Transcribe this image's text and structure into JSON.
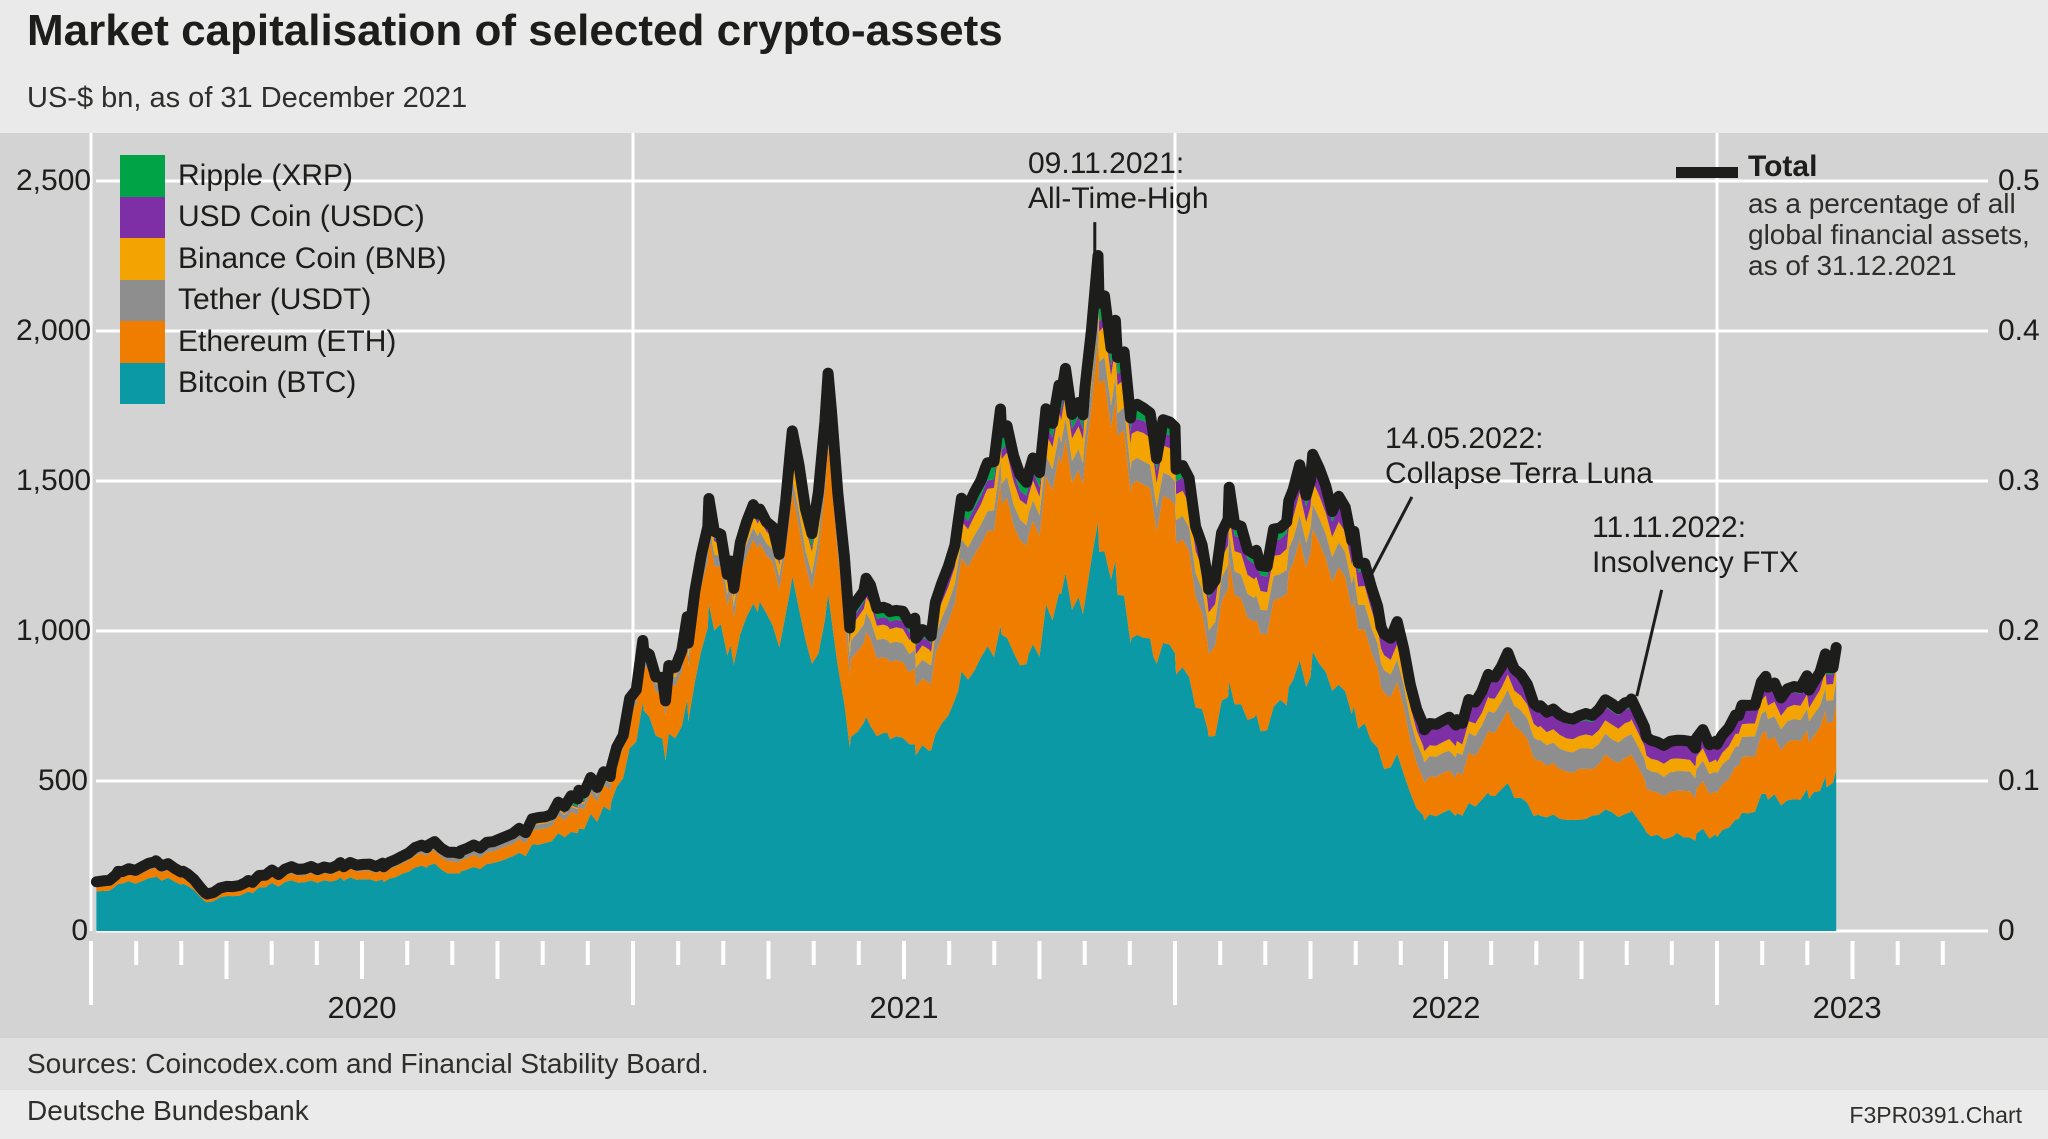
{
  "header": {
    "title": "Market capitalisation of selected crypto-assets",
    "subtitle": "US-$ bn, as of 31 December 2021"
  },
  "legend": {
    "items": [
      {
        "label": "Ripple (XRP)",
        "color": "#00a345"
      },
      {
        "label": "USD Coin (USDC)",
        "color": "#7e2fa5"
      },
      {
        "label": "Binance Coin (BNB)",
        "color": "#f3a400"
      },
      {
        "label": "Tether (USDT)",
        "color": "#8e8e8e"
      },
      {
        "label": "Ethereum (ETH)",
        "color": "#ee7d00"
      },
      {
        "label": "Bitcoin (BTC)",
        "color": "#0a99a5"
      }
    ]
  },
  "total_legend": {
    "label": "Total",
    "color": "#1d1d1b",
    "note_line1": "as a percentage of all",
    "note_line2": "global financial assets,",
    "note_line3": "as of 31.12.2021"
  },
  "axes": {
    "left": {
      "ticks": [
        {
          "value": 0,
          "label": "0"
        },
        {
          "value": 500,
          "label": "500"
        },
        {
          "value": 1000,
          "label": "1,000"
        },
        {
          "value": 1500,
          "label": "1,500"
        },
        {
          "value": 2000,
          "label": "2,000"
        },
        {
          "value": 2500,
          "label": "2,500"
        }
      ]
    },
    "right": {
      "ticks": [
        {
          "value": 0,
          "label": "0"
        },
        {
          "value": 0.1,
          "label": "0.1"
        },
        {
          "value": 0.2,
          "label": "0.2"
        },
        {
          "value": 0.3,
          "label": "0.3"
        },
        {
          "value": 0.4,
          "label": "0.4"
        },
        {
          "value": 0.5,
          "label": "0.5"
        }
      ]
    },
    "x": {
      "month_tick_start": 2020.0,
      "month_tick_end": 2023.45,
      "year_ticks": [
        2020,
        2021,
        2022,
        2023
      ],
      "year_labels": [
        {
          "label": "2020",
          "t_center": 2020.5
        },
        {
          "label": "2021",
          "t_center": 2021.5
        },
        {
          "label": "2022",
          "t_center": 2022.5
        },
        {
          "label": "2023",
          "t_center": 2023.24
        }
      ]
    }
  },
  "footer": {
    "sources": "Sources: Coincodex.com and Financial Stability Board.",
    "publisher": "Deutsche Bundesbank",
    "chart_id": "F3PR0391.Chart"
  },
  "chart_data": {
    "type": "area",
    "subtype": "stacked-area-with-total-line",
    "title": "Market capitalisation of selected crypto-assets",
    "xlabel": "",
    "ylabel_left": "US-$ bn",
    "ylabel_right": "Total as a percentage of all global financial assets",
    "ylim_left": [
      0,
      2500
    ],
    "ylim_right": [
      0,
      0.5
    ],
    "xlim": [
      2020.01,
      2023.5
    ],
    "grid": true,
    "legend_position": "top-left",
    "x": [
      2020.01,
      2020.05,
      2020.12,
      2020.17,
      2020.21,
      2020.29,
      2020.37,
      2020.46,
      2020.54,
      2020.62,
      2020.68,
      2020.77,
      2020.85,
      2020.9,
      2020.96,
      2021.02,
      2021.06,
      2021.1,
      2021.14,
      2021.18,
      2021.23,
      2021.27,
      2021.29,
      2021.33,
      2021.36,
      2021.4,
      2021.43,
      2021.47,
      2021.52,
      2021.55,
      2021.6,
      2021.65,
      2021.68,
      2021.73,
      2021.79,
      2021.83,
      2021.86,
      2021.89,
      2021.92,
      2021.96,
      2022.0,
      2022.06,
      2022.1,
      2022.15,
      2022.21,
      2022.25,
      2022.33,
      2022.36,
      2022.38,
      2022.41,
      2022.46,
      2022.52,
      2022.58,
      2022.62,
      2022.67,
      2022.71,
      2022.77,
      2022.84,
      2022.87,
      2022.92,
      2022.96,
      2023.0,
      2023.04,
      2023.09,
      2023.13,
      2023.17,
      2023.2,
      2023.22
    ],
    "series": [
      {
        "name": "Bitcoin (BTC)",
        "color": "#0a99a5",
        "values": [
          132,
          155,
          182,
          160,
          100,
          128,
          168,
          172,
          170,
          215,
          192,
          242,
          298,
          338,
          428,
          738,
          598,
          718,
          1078,
          898,
          1118,
          968,
          1185,
          905,
          1078,
          622,
          700,
          640,
          630,
          620,
          820,
          928,
          980,
          880,
          1158,
          1050,
          1318,
          1150,
          950,
          920,
          910,
          662,
          790,
          670,
          780,
          905,
          730,
          650,
          552,
          570,
          372,
          395,
          450,
          468,
          390,
          374,
          382,
          400,
          320,
          312,
          320,
          316,
          390,
          440,
          420,
          452,
          500,
          537
        ]
      },
      {
        "name": "Ethereum (ETH)",
        "color": "#ee7d00",
        "values": [
          15,
          20,
          30,
          24,
          14,
          19,
          23,
          26,
          30,
          43,
          38,
          42,
          52,
          66,
          70,
          155,
          152,
          195,
          225,
          165,
          215,
          185,
          265,
          258,
          488,
          245,
          290,
          250,
          240,
          235,
          358,
          385,
          462,
          380,
          448,
          430,
          575,
          530,
          500,
          480,
          460,
          290,
          375,
          315,
          370,
          415,
          348,
          300,
          240,
          242,
          125,
          135,
          200,
          235,
          190,
          166,
          163,
          190,
          150,
          145,
          150,
          146,
          185,
          196,
          186,
          196,
          210,
          225
        ]
      },
      {
        "name": "Tether (USDT)",
        "color": "#8e8e8e",
        "values": [
          5,
          5,
          5,
          5,
          5,
          6,
          9,
          9,
          9,
          10,
          14,
          16,
          17,
          18,
          20,
          24,
          26,
          30,
          35,
          38,
          40,
          42,
          46,
          50,
          58,
          60,
          62,
          62,
          62,
          62,
          63,
          65,
          68,
          68,
          70,
          71,
          73,
          74,
          76,
          77,
          78,
          78,
          79,
          79,
          80,
          82,
          83,
          82,
          77,
          74,
          68,
          66,
          66,
          68,
          68,
          68,
          68,
          69,
          66,
          65,
          66,
          66,
          66,
          68,
          69,
          71,
          74,
          70
        ]
      },
      {
        "name": "Binance Coin (BNB)",
        "color": "#f3a400",
        "values": [
          2,
          3,
          4,
          3,
          2,
          2,
          3,
          3,
          3,
          3,
          4,
          4,
          4,
          5,
          5,
          6,
          7,
          20,
          48,
          35,
          42,
          40,
          83,
          75,
          95,
          45,
          55,
          48,
          48,
          48,
          57,
          70,
          82,
          62,
          77,
          75,
          105,
          98,
          90,
          87,
          88,
          60,
          69,
          61,
          67,
          74,
          65,
          58,
          48,
          50,
          37,
          37,
          44,
          49,
          45,
          44,
          44,
          47,
          42,
          42,
          40,
          39,
          44,
          47,
          45,
          48,
          55,
          58
        ]
      },
      {
        "name": "USD Coin (USDC)",
        "color": "#7e2fa5",
        "values": [
          1,
          1,
          1,
          1,
          1,
          1,
          1,
          1,
          1,
          1,
          2,
          3,
          3,
          3,
          4,
          5,
          6,
          7,
          9,
          9,
          10,
          11,
          11,
          12,
          15,
          20,
          22,
          25,
          26,
          27,
          27,
          28,
          29,
          31,
          32,
          33,
          34,
          36,
          40,
          41,
          43,
          48,
          51,
          52,
          52,
          51,
          49,
          50,
          51,
          53,
          56,
          55,
          54,
          52,
          51,
          50,
          46,
          44,
          44,
          43,
          44,
          44,
          43,
          42,
          42,
          40,
          34,
          30
        ]
      },
      {
        "name": "Ripple (XRP)",
        "color": "#00a345",
        "values": [
          9,
          10,
          12,
          10,
          7,
          8,
          9,
          8,
          9,
          13,
          11,
          11,
          16,
          30,
          13,
          15,
          12,
          18,
          26,
          19,
          24,
          23,
          65,
          50,
          70,
          35,
          40,
          32,
          30,
          28,
          48,
          55,
          64,
          45,
          53,
          46,
          62,
          54,
          46,
          42,
          41,
          29,
          38,
          33,
          37,
          41,
          31,
          26,
          20,
          20,
          16,
          16,
          19,
          19,
          17,
          17,
          23,
          23,
          18,
          17,
          17,
          16,
          19,
          20,
          19,
          21,
          23,
          25
        ]
      }
    ],
    "total_line": {
      "name": "Total",
      "color": "#1d1d1b",
      "definition": "sum of all stacked series; right axis reads it as % of global financial assets"
    },
    "annotations": [
      {
        "date_label": "09.11.2021:",
        "event_label": "All-Time-High",
        "pointer": {
          "from": {
            "t": 2021.852,
            "v": 2363
          },
          "to": {
            "t": 2021.852,
            "v": 2137
          }
        }
      },
      {
        "date_label": "14.05.2022:",
        "event_label": "Collapse Terra Luna",
        "pointer": {
          "from": {
            "t": 2022.437,
            "v": 1447
          },
          "to": {
            "t": 2022.354,
            "v": 1160
          }
        }
      },
      {
        "date_label": "11.11.2022:",
        "event_label": "Insolvency FTX",
        "pointer": {
          "from": {
            "t": 2022.898,
            "v": 1137
          },
          "to": {
            "t": 2022.852,
            "v": 783
          }
        }
      }
    ]
  }
}
